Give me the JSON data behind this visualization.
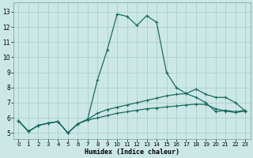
{
  "xlabel": "Humidex (Indice chaleur)",
  "ylabel": "",
  "xlim": [
    -0.5,
    23.5
  ],
  "ylim": [
    4.6,
    13.6
  ],
  "xticks": [
    0,
    1,
    2,
    3,
    4,
    5,
    6,
    7,
    8,
    9,
    10,
    11,
    12,
    13,
    14,
    15,
    16,
    17,
    18,
    19,
    20,
    21,
    22,
    23
  ],
  "yticks": [
    5,
    6,
    7,
    8,
    9,
    10,
    11,
    12,
    13
  ],
  "bg_color": "#cce8e6",
  "grid_color": "#aacfcc",
  "line_color": "#1a6b60",
  "line1_x": [
    0,
    1,
    2,
    3,
    4,
    5,
    6,
    7,
    8,
    9,
    10,
    11,
    12,
    13,
    14,
    15,
    16,
    17,
    18,
    19,
    20,
    21,
    22,
    23
  ],
  "line1_y": [
    5.8,
    5.1,
    5.5,
    5.65,
    5.75,
    5.0,
    5.6,
    5.9,
    8.5,
    10.5,
    12.85,
    12.7,
    12.1,
    12.75,
    12.3,
    9.0,
    8.0,
    7.6,
    7.35,
    7.0,
    6.4,
    6.5,
    6.4,
    6.5
  ],
  "line2_x": [
    0,
    1,
    2,
    3,
    4,
    5,
    6,
    7,
    8,
    9,
    10,
    11,
    12,
    13,
    14,
    15,
    16,
    17,
    18,
    19,
    20,
    21,
    22,
    23
  ],
  "line2_y": [
    5.8,
    5.1,
    5.5,
    5.65,
    5.75,
    5.0,
    5.6,
    5.9,
    6.3,
    6.55,
    6.7,
    6.85,
    7.0,
    7.15,
    7.3,
    7.45,
    7.55,
    7.6,
    7.9,
    7.55,
    7.35,
    7.35,
    7.0,
    6.45
  ],
  "line3_x": [
    0,
    1,
    2,
    3,
    4,
    5,
    6,
    7,
    8,
    9,
    10,
    11,
    12,
    13,
    14,
    15,
    16,
    17,
    18,
    19,
    20,
    21,
    22,
    23
  ],
  "line3_y": [
    5.8,
    5.1,
    5.5,
    5.65,
    5.75,
    5.0,
    5.6,
    5.85,
    6.0,
    6.15,
    6.3,
    6.4,
    6.5,
    6.6,
    6.65,
    6.72,
    6.78,
    6.85,
    6.9,
    6.88,
    6.6,
    6.45,
    6.35,
    6.45
  ]
}
